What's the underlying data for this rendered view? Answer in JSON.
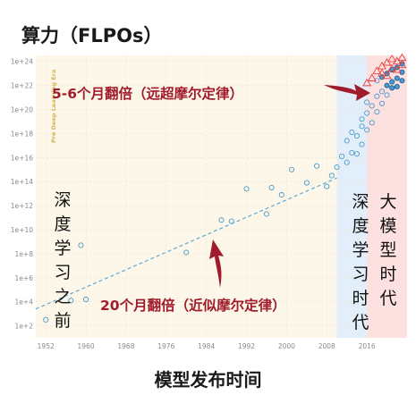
{
  "page": {
    "title": "算力（FLPOs）",
    "x_title": "模型发布时间"
  },
  "colors": {
    "pre_dl_bg": "#fdf7e9",
    "dl_bg": "#e2effa",
    "large_bg": "#fde0e0",
    "circle": "#4a9acb",
    "circle_dark": "#1f5f9e",
    "triangle": "#e84040",
    "trend": "#5aaad6",
    "anno": "#a01c2c"
  },
  "chart_data": {
    "type": "scatter",
    "title": "算力（FLPOs）",
    "xlabel": "模型发布时间",
    "ylabel": "",
    "x_ticks": [
      "1952",
      "1960",
      "1968",
      "1976",
      "1984",
      "1992",
      "2000",
      "2008",
      "2016"
    ],
    "y_ticks": [
      "1e+2",
      "1e+4",
      "1e+6",
      "1e+8",
      "1e+10",
      "1e+12",
      "1e+14",
      "1e+16",
      "1e+18",
      "1e+20",
      "1e+22",
      "1e+24"
    ],
    "x_range": [
      1950,
      2024
    ],
    "y_log10_range": [
      1,
      24.5
    ],
    "y_scale": "log",
    "eras": [
      {
        "name": "Pre Deep Learning Era",
        "label": "深度学习之前",
        "from": 1950,
        "to": 2010
      },
      {
        "name": "deep-learning",
        "label": "深度学习时代",
        "from": 2010,
        "to": 2016
      },
      {
        "name": "large-model",
        "label": "大模型时代",
        "from": 2016,
        "to": 2024
      }
    ],
    "annotations": [
      {
        "text": "5-6个月翻倍（远超摩尔定律）"
      },
      {
        "text": "20个月翻倍（近似摩尔定律）"
      }
    ],
    "trend_line": {
      "x": [
        1950,
        2010
      ],
      "y_log10": [
        3.4,
        14.3
      ]
    },
    "series": [
      {
        "marker": "circle",
        "points": [
          [
            1952,
            2.5
          ],
          [
            1957,
            4.1
          ],
          [
            1959,
            8.7
          ],
          [
            1960,
            4.2
          ],
          [
            1980,
            8.1
          ],
          [
            1987,
            10.8
          ],
          [
            1989,
            10.7
          ],
          [
            1992,
            13.4
          ],
          [
            1996,
            11.3
          ],
          [
            1997,
            13.5
          ],
          [
            1999,
            12.9
          ],
          [
            2001,
            15.0
          ],
          [
            2004,
            13.9
          ],
          [
            2006,
            15.3
          ],
          [
            2008,
            13.6
          ],
          [
            2009,
            14.5
          ],
          [
            2010,
            15.2
          ],
          [
            2011,
            16.1
          ],
          [
            2012,
            17.4
          ],
          [
            2012,
            15.6
          ],
          [
            2013,
            16.4
          ],
          [
            2013,
            18.1
          ],
          [
            2014,
            17.8
          ],
          [
            2014,
            16.3
          ],
          [
            2015,
            18.6
          ],
          [
            2015,
            19.2
          ],
          [
            2015,
            17.1
          ],
          [
            2016,
            19.7
          ],
          [
            2016,
            18.3
          ],
          [
            2016,
            20.6
          ],
          [
            2017,
            20.3
          ],
          [
            2017,
            18.9
          ],
          [
            2018,
            21.1
          ],
          [
            2018,
            19.8
          ],
          [
            2018,
            22.4
          ],
          [
            2019,
            21.5
          ],
          [
            2019,
            20.5
          ],
          [
            2019,
            22.7
          ],
          [
            2020,
            22.0
          ],
          [
            2020,
            21.2
          ],
          [
            2020,
            23.0
          ],
          [
            2021,
            22.3
          ],
          [
            2021,
            23.3
          ],
          [
            2021,
            21.8
          ],
          [
            2022,
            22.6
          ],
          [
            2022,
            23.5
          ],
          [
            2022,
            21.9
          ],
          [
            2023,
            23.1
          ],
          [
            2023,
            22.4
          ],
          [
            2023,
            23.8
          ]
        ]
      },
      {
        "marker": "triangle",
        "points": [
          [
            2016,
            22.2
          ],
          [
            2017,
            22.6
          ],
          [
            2018,
            23.2
          ],
          [
            2019,
            23.6
          ],
          [
            2019,
            23.0
          ],
          [
            2020,
            23.9
          ],
          [
            2020,
            22.8
          ],
          [
            2021,
            24.2
          ],
          [
            2021,
            23.4
          ],
          [
            2022,
            24.0
          ],
          [
            2022,
            23.3
          ],
          [
            2023,
            24.3
          ],
          [
            2023,
            23.7
          ]
        ]
      }
    ]
  }
}
